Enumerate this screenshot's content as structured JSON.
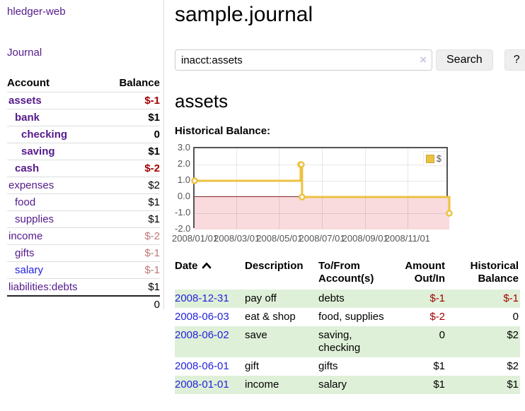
{
  "app": {
    "brand": "hledger-web",
    "nav_journal": "Journal"
  },
  "colors": {
    "accent_purple": "#551a8b",
    "link_blue": "#2222dd",
    "negative_dark": "#a40000",
    "negative_light": "#c07777",
    "row_stripe_green": "#dff0d8",
    "chart_line_gold": "#edc240"
  },
  "sidebar": {
    "col_account": "Account",
    "col_balance": "Balance",
    "accounts": [
      {
        "name": "assets",
        "depth": 1,
        "balance": "$-1",
        "bold": true,
        "neg": "dark"
      },
      {
        "name": "bank",
        "depth": 2,
        "balance": "$1",
        "bold": true,
        "neg": null
      },
      {
        "name": "checking",
        "depth": 3,
        "balance": "0",
        "bold": true,
        "neg": null
      },
      {
        "name": "saving",
        "depth": 3,
        "balance": "$1",
        "bold": true,
        "neg": null
      },
      {
        "name": "cash",
        "depth": 2,
        "balance": "$-2",
        "bold": true,
        "neg": "dark"
      },
      {
        "name": "expenses",
        "depth": 1,
        "balance": "$2",
        "bold": false,
        "neg": null
      },
      {
        "name": "food",
        "depth": 2,
        "balance": "$1",
        "bold": false,
        "neg": null
      },
      {
        "name": "supplies",
        "depth": 2,
        "balance": "$1",
        "bold": false,
        "neg": null
      },
      {
        "name": "income",
        "depth": 1,
        "balance": "$-2",
        "bold": false,
        "neg": "light"
      },
      {
        "name": "gifts",
        "depth": 2,
        "balance": "$-1",
        "bold": false,
        "neg": "light"
      },
      {
        "name": "salary",
        "depth": 2,
        "balance": "$-1",
        "bold": false,
        "neg": "light",
        "link": "blue"
      },
      {
        "name": "liabilities:debts",
        "depth": 1,
        "balance": "$1",
        "bold": false,
        "neg": null
      }
    ],
    "total": "0"
  },
  "header": {
    "title": "sample.journal"
  },
  "search": {
    "value": "inacct:assets",
    "clear_icon": "×",
    "button_label": "Search",
    "help_label": "?"
  },
  "register": {
    "heading": "assets",
    "chart_label": "Historical Balance:"
  },
  "chart_data": {
    "type": "line",
    "style": "step",
    "title": "Historical Balance",
    "series": [
      {
        "name": "$",
        "color": "#edc240",
        "points": [
          {
            "date": "2008-01-01",
            "value": 1
          },
          {
            "date": "2008-06-01",
            "value": 2
          },
          {
            "date": "2008-06-02",
            "value": 2
          },
          {
            "date": "2008-06-03",
            "value": 0
          },
          {
            "date": "2008-12-31",
            "value": -1
          }
        ]
      }
    ],
    "x_range": [
      "2008-01-01",
      "2008-12-31"
    ],
    "x_ticks": [
      "2008/01/01",
      "2008/03/01",
      "2008/05/01",
      "2008/07/01",
      "2008/09/01",
      "2008/11/01"
    ],
    "y_ticks": [
      3.0,
      2.0,
      1.0,
      0.0,
      -1.0,
      -2.0
    ],
    "ylim": [
      -2,
      3
    ],
    "legend_position": "top-right",
    "grid": true,
    "negative_region_color": "#f9dadd",
    "zero_line_color": "#7f2a2a"
  },
  "transactions": {
    "headers": {
      "date": "Date",
      "description": "Description",
      "accounts": "To/From Account(s)",
      "amount": "Amount Out/In",
      "balance": "Historical Balance"
    },
    "rows": [
      {
        "date": "2008-12-31",
        "description": "pay off",
        "accounts": "debts",
        "amount": "$-1",
        "balance": "$-1"
      },
      {
        "date": "2008-06-03",
        "description": "eat & shop",
        "accounts": "food, supplies",
        "amount": "$-2",
        "balance": "0"
      },
      {
        "date": "2008-06-02",
        "description": "save",
        "accounts": "saving, checking",
        "amount": "0",
        "balance": "$2"
      },
      {
        "date": "2008-06-01",
        "description": "gift",
        "accounts": "gifts",
        "amount": "$1",
        "balance": "$2"
      },
      {
        "date": "2008-01-01",
        "description": "income",
        "accounts": "salary",
        "amount": "$1",
        "balance": "$1"
      }
    ]
  }
}
